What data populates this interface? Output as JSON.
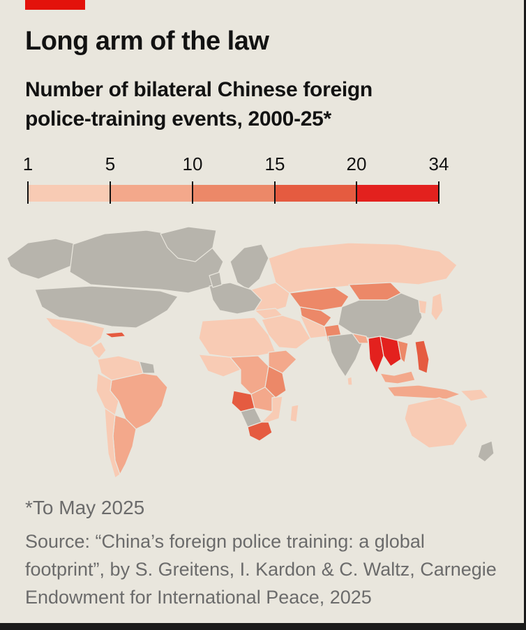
{
  "header": {
    "title": "Long arm of the law",
    "subtitle": "Number of bilateral Chinese foreign police-training events, 2000-25*"
  },
  "legend": {
    "ticks": [
      "1",
      "5",
      "10",
      "15",
      "20",
      "34"
    ],
    "bins": [
      {
        "from": 1,
        "to": 5,
        "color": "#f8cbb4"
      },
      {
        "from": 5,
        "to": 10,
        "color": "#f3a88b"
      },
      {
        "from": 10,
        "to": 15,
        "color": "#ec8868"
      },
      {
        "from": 15,
        "to": 20,
        "color": "#e55b40"
      },
      {
        "from": 20,
        "to": 34,
        "color": "#e3211e"
      }
    ]
  },
  "map": {
    "no_data_color": "#b7b4ac",
    "background_color": "#e9e6dd"
  },
  "footer": {
    "footnote": "*To May 2025",
    "source": "Source: “China’s foreign police training: a global footprint”,  by S. Greitens, I. Kardon & C. Waltz, Carnegie Endowment for International Peace, 2025"
  },
  "colors": {
    "accent": "#e3120b",
    "text": "#121212",
    "muted": "#6b6b6b"
  }
}
